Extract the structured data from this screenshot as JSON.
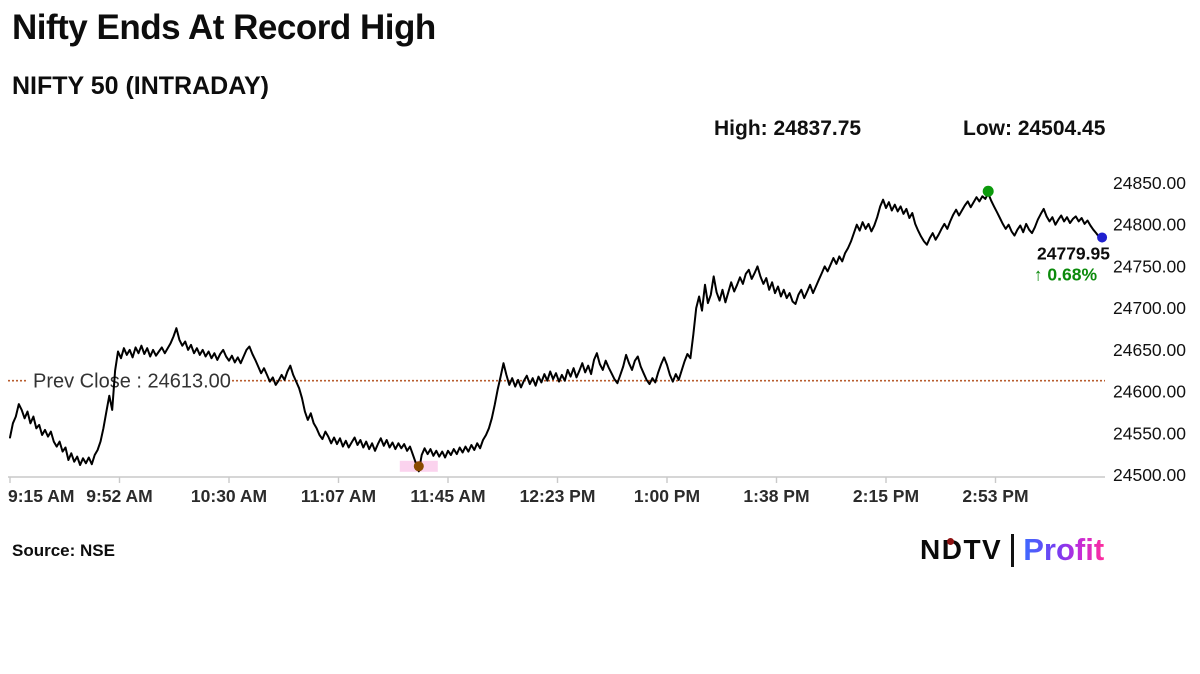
{
  "header": {
    "title": "Nifty Ends At Record High",
    "subtitle": "NIFTY 50 (INTRADAY)",
    "high_label": "High: 24837.75",
    "low_label": "Low: 24504.45"
  },
  "footer": {
    "source": "Source: NSE",
    "logo_ndtv": "NDTV",
    "logo_profit": "Profit"
  },
  "chart_data": {
    "type": "line",
    "title": "NIFTY 50 (INTRADAY)",
    "xlabel": "",
    "ylabel": "",
    "grid": false,
    "legend": "none",
    "line_color": "#000000",
    "axis_color": "#c9c9c9",
    "tick_label_color": "#2b2b2b",
    "y_axis": {
      "min": 24500,
      "max": 24850,
      "labels": [
        "24850.00",
        "24800.00",
        "24750.00",
        "24700.00",
        "24650.00",
        "24600.00",
        "24550.00",
        "24500.00"
      ],
      "values": [
        24850,
        24800,
        24750,
        24700,
        24650,
        24600,
        24550,
        24500
      ]
    },
    "x_axis": {
      "total_minutes": 375,
      "labels": [
        "9:15 AM",
        "9:52 AM",
        "10:30 AM",
        "11:07 AM",
        "11:45 AM",
        "12:23 PM",
        "1:00 PM",
        "1:38 PM",
        "2:15 PM",
        "2:53 PM"
      ],
      "minutes": [
        0,
        37.5,
        75,
        112.5,
        150,
        187.5,
        225,
        262.5,
        300,
        337.5
      ]
    },
    "prev_close": {
      "label": "Prev Close : 24613.00",
      "value": 24613,
      "color": "#b85c2e",
      "label_color": "#333333"
    },
    "high": {
      "value": 24837.75,
      "minute": 335,
      "color": "#0c9a0c"
    },
    "low": {
      "value": 24504.45,
      "minute": 140,
      "color": "#8a4a00",
      "band_color": "#fbd3ee"
    },
    "last": {
      "value": 24779.95,
      "minute": 374,
      "price_label": "24779.95",
      "change_label": "↑ 0.68%",
      "marker_color": "#2020cf",
      "price_color": "#0d0d0d",
      "change_color": "#0b8a0b"
    },
    "series": [
      [
        0,
        24545
      ],
      [
        1,
        24562
      ],
      [
        2,
        24570
      ],
      [
        3,
        24585
      ],
      [
        4,
        24578
      ],
      [
        5,
        24568
      ],
      [
        6,
        24576
      ],
      [
        7,
        24562
      ],
      [
        8,
        24570
      ],
      [
        9,
        24556
      ],
      [
        10,
        24560
      ],
      [
        11,
        24548
      ],
      [
        12,
        24554
      ],
      [
        13,
        24546
      ],
      [
        14,
        24552
      ],
      [
        15,
        24540
      ],
      [
        16,
        24534
      ],
      [
        17,
        24540
      ],
      [
        18,
        24528
      ],
      [
        19,
        24533
      ],
      [
        20,
        24518
      ],
      [
        21,
        24526
      ],
      [
        22,
        24516
      ],
      [
        23,
        24522
      ],
      [
        24,
        24512
      ],
      [
        25,
        24520
      ],
      [
        26,
        24514
      ],
      [
        27,
        24521
      ],
      [
        28,
        24513
      ],
      [
        29,
        24524
      ],
      [
        30,
        24530
      ],
      [
        31,
        24540
      ],
      [
        32,
        24556
      ],
      [
        33,
        24576
      ],
      [
        34,
        24595
      ],
      [
        35,
        24578
      ],
      [
        36,
        24625
      ],
      [
        37,
        24648
      ],
      [
        38,
        24640
      ],
      [
        39,
        24652
      ],
      [
        40,
        24644
      ],
      [
        41,
        24650
      ],
      [
        42,
        24641
      ],
      [
        43,
        24653
      ],
      [
        44,
        24646
      ],
      [
        45,
        24655
      ],
      [
        46,
        24645
      ],
      [
        47,
        24652
      ],
      [
        48,
        24642
      ],
      [
        49,
        24650
      ],
      [
        50,
        24643
      ],
      [
        51,
        24648
      ],
      [
        52,
        24653
      ],
      [
        53,
        24646
      ],
      [
        54,
        24652
      ],
      [
        55,
        24658
      ],
      [
        56,
        24666
      ],
      [
        57,
        24676
      ],
      [
        58,
        24662
      ],
      [
        59,
        24655
      ],
      [
        60,
        24660
      ],
      [
        61,
        24650
      ],
      [
        62,
        24656
      ],
      [
        63,
        24646
      ],
      [
        64,
        24652
      ],
      [
        65,
        24644
      ],
      [
        66,
        24650
      ],
      [
        67,
        24642
      ],
      [
        68,
        24648
      ],
      [
        69,
        24640
      ],
      [
        70,
        24646
      ],
      [
        71,
        24638
      ],
      [
        72,
        24645
      ],
      [
        73,
        24650
      ],
      [
        74,
        24642
      ],
      [
        75,
        24637
      ],
      [
        76,
        24643
      ],
      [
        77,
        24635
      ],
      [
        78,
        24641
      ],
      [
        79,
        24634
      ],
      [
        80,
        24642
      ],
      [
        81,
        24650
      ],
      [
        82,
        24654
      ],
      [
        83,
        24645
      ],
      [
        84,
        24638
      ],
      [
        85,
        24630
      ],
      [
        86,
        24622
      ],
      [
        87,
        24628
      ],
      [
        88,
        24620
      ],
      [
        89,
        24612
      ],
      [
        90,
        24617
      ],
      [
        91,
        24608
      ],
      [
        92,
        24613
      ],
      [
        93,
        24620
      ],
      [
        94,
        24614
      ],
      [
        95,
        24624
      ],
      [
        96,
        24631
      ],
      [
        97,
        24620
      ],
      [
        98,
        24612
      ],
      [
        99,
        24604
      ],
      [
        100,
        24592
      ],
      [
        101,
        24576
      ],
      [
        102,
        24566
      ],
      [
        103,
        24574
      ],
      [
        104,
        24562
      ],
      [
        105,
        24556
      ],
      [
        106,
        24548
      ],
      [
        107,
        24543
      ],
      [
        108,
        24552
      ],
      [
        109,
        24546
      ],
      [
        110,
        24538
      ],
      [
        111,
        24545
      ],
      [
        112,
        24537
      ],
      [
        113,
        24544
      ],
      [
        114,
        24534
      ],
      [
        115,
        24541
      ],
      [
        116,
        24533
      ],
      [
        117,
        24539
      ],
      [
        118,
        24545
      ],
      [
        119,
        24536
      ],
      [
        120,
        24542
      ],
      [
        121,
        24533
      ],
      [
        122,
        24540
      ],
      [
        123,
        24531
      ],
      [
        124,
        24538
      ],
      [
        125,
        24529
      ],
      [
        126,
        24537
      ],
      [
        127,
        24544
      ],
      [
        128,
        24535
      ],
      [
        129,
        24542
      ],
      [
        130,
        24533
      ],
      [
        131,
        24539
      ],
      [
        132,
        24531
      ],
      [
        133,
        24538
      ],
      [
        134,
        24532
      ],
      [
        135,
        24537
      ],
      [
        136,
        24529
      ],
      [
        137,
        24534
      ],
      [
        138,
        24524
      ],
      [
        139,
        24514
      ],
      [
        140,
        24504.45
      ],
      [
        141,
        24524
      ],
      [
        142,
        24532
      ],
      [
        143,
        24525
      ],
      [
        144,
        24531
      ],
      [
        145,
        24523
      ],
      [
        146,
        24529
      ],
      [
        147,
        24522
      ],
      [
        148,
        24528
      ],
      [
        149,
        24521
      ],
      [
        150,
        24529
      ],
      [
        151,
        24524
      ],
      [
        152,
        24531
      ],
      [
        153,
        24525
      ],
      [
        154,
        24533
      ],
      [
        155,
        24527
      ],
      [
        156,
        24534
      ],
      [
        157,
        24528
      ],
      [
        158,
        24536
      ],
      [
        159,
        24530
      ],
      [
        160,
        24538
      ],
      [
        161,
        24532
      ],
      [
        162,
        24542
      ],
      [
        163,
        24548
      ],
      [
        164,
        24556
      ],
      [
        165,
        24568
      ],
      [
        166,
        24584
      ],
      [
        167,
        24602
      ],
      [
        168,
        24618
      ],
      [
        169,
        24634
      ],
      [
        170,
        24620
      ],
      [
        171,
        24608
      ],
      [
        172,
        24616
      ],
      [
        173,
        24606
      ],
      [
        174,
        24614
      ],
      [
        175,
        24605
      ],
      [
        176,
        24613
      ],
      [
        177,
        24619
      ],
      [
        178,
        24609
      ],
      [
        179,
        24616
      ],
      [
        180,
        24607
      ],
      [
        181,
        24618
      ],
      [
        182,
        24611
      ],
      [
        183,
        24621
      ],
      [
        184,
        24613
      ],
      [
        185,
        24624
      ],
      [
        186,
        24615
      ],
      [
        187,
        24622
      ],
      [
        188,
        24612
      ],
      [
        189,
        24620
      ],
      [
        190,
        24613
      ],
      [
        191,
        24626
      ],
      [
        192,
        24618
      ],
      [
        193,
        24628
      ],
      [
        194,
        24617
      ],
      [
        195,
        24625
      ],
      [
        196,
        24634
      ],
      [
        197,
        24623
      ],
      [
        198,
        24631
      ],
      [
        199,
        24621
      ],
      [
        200,
        24638
      ],
      [
        201,
        24646
      ],
      [
        202,
        24633
      ],
      [
        203,
        24626
      ],
      [
        204,
        24637
      ],
      [
        205,
        24629
      ],
      [
        206,
        24622
      ],
      [
        207,
        24615
      ],
      [
        208,
        24610
      ],
      [
        209,
        24620
      ],
      [
        210,
        24630
      ],
      [
        211,
        24644
      ],
      [
        212,
        24634
      ],
      [
        213,
        24626
      ],
      [
        214,
        24637
      ],
      [
        215,
        24642
      ],
      [
        216,
        24630
      ],
      [
        217,
        24622
      ],
      [
        218,
        24614
      ],
      [
        219,
        24609
      ],
      [
        220,
        24616
      ],
      [
        221,
        24611
      ],
      [
        222,
        24623
      ],
      [
        223,
        24633
      ],
      [
        224,
        24641
      ],
      [
        225,
        24632
      ],
      [
        226,
        24620
      ],
      [
        227,
        24612
      ],
      [
        228,
        24621
      ],
      [
        229,
        24614
      ],
      [
        230,
        24625
      ],
      [
        231,
        24636
      ],
      [
        232,
        24645
      ],
      [
        233,
        24640
      ],
      [
        234,
        24668
      ],
      [
        235,
        24700
      ],
      [
        236,
        24714
      ],
      [
        237,
        24697
      ],
      [
        238,
        24728
      ],
      [
        239,
        24706
      ],
      [
        240,
        24716
      ],
      [
        241,
        24738
      ],
      [
        242,
        24719
      ],
      [
        243,
        24709
      ],
      [
        244,
        24722
      ],
      [
        245,
        24707
      ],
      [
        246,
        24719
      ],
      [
        247,
        24731
      ],
      [
        248,
        24720
      ],
      [
        249,
        24728
      ],
      [
        250,
        24737
      ],
      [
        251,
        24729
      ],
      [
        252,
        24741
      ],
      [
        253,
        24746
      ],
      [
        254,
        24735
      ],
      [
        255,
        24742
      ],
      [
        256,
        24750
      ],
      [
        257,
        24738
      ],
      [
        258,
        24729
      ],
      [
        259,
        24736
      ],
      [
        260,
        24722
      ],
      [
        261,
        24731
      ],
      [
        262,
        24718
      ],
      [
        263,
        24726
      ],
      [
        264,
        24714
      ],
      [
        265,
        24722
      ],
      [
        266,
        24712
      ],
      [
        267,
        24718
      ],
      [
        268,
        24708
      ],
      [
        269,
        24705
      ],
      [
        270,
        24716
      ],
      [
        271,
        24722
      ],
      [
        272,
        24712
      ],
      [
        273,
        24720
      ],
      [
        274,
        24728
      ],
      [
        275,
        24718
      ],
      [
        276,
        24726
      ],
      [
        277,
        24734
      ],
      [
        278,
        24742
      ],
      [
        279,
        24750
      ],
      [
        280,
        24744
      ],
      [
        281,
        24752
      ],
      [
        282,
        24760
      ],
      [
        283,
        24753
      ],
      [
        284,
        24762
      ],
      [
        285,
        24756
      ],
      [
        286,
        24766
      ],
      [
        287,
        24772
      ],
      [
        288,
        24780
      ],
      [
        289,
        24790
      ],
      [
        290,
        24800
      ],
      [
        291,
        24793
      ],
      [
        292,
        24803
      ],
      [
        293,
        24795
      ],
      [
        294,
        24801
      ],
      [
        295,
        24792
      ],
      [
        296,
        24799
      ],
      [
        297,
        24809
      ],
      [
        298,
        24822
      ],
      [
        299,
        24830
      ],
      [
        300,
        24820
      ],
      [
        301,
        24827
      ],
      [
        302,
        24817
      ],
      [
        303,
        24824
      ],
      [
        304,
        24816
      ],
      [
        305,
        24822
      ],
      [
        306,
        24813
      ],
      [
        307,
        24819
      ],
      [
        308,
        24808
      ],
      [
        309,
        24814
      ],
      [
        310,
        24801
      ],
      [
        311,
        24793
      ],
      [
        312,
        24786
      ],
      [
        313,
        24780
      ],
      [
        314,
        24776
      ],
      [
        315,
        24784
      ],
      [
        316,
        24790
      ],
      [
        317,
        24782
      ],
      [
        318,
        24788
      ],
      [
        319,
        24795
      ],
      [
        320,
        24801
      ],
      [
        321,
        24795
      ],
      [
        322,
        24804
      ],
      [
        323,
        24812
      ],
      [
        324,
        24818
      ],
      [
        325,
        24811
      ],
      [
        326,
        24817
      ],
      [
        327,
        24823
      ],
      [
        328,
        24828
      ],
      [
        329,
        24821
      ],
      [
        330,
        24827
      ],
      [
        331,
        24833
      ],
      [
        332,
        24828
      ],
      [
        333,
        24834
      ],
      [
        334,
        24831
      ],
      [
        335,
        24837.75
      ],
      [
        336,
        24829
      ],
      [
        337,
        24822
      ],
      [
        338,
        24815
      ],
      [
        339,
        24808
      ],
      [
        340,
        24801
      ],
      [
        341,
        24795
      ],
      [
        342,
        24800
      ],
      [
        343,
        24792
      ],
      [
        344,
        24787
      ],
      [
        345,
        24794
      ],
      [
        346,
        24799
      ],
      [
        347,
        24791
      ],
      [
        348,
        24801
      ],
      [
        349,
        24794
      ],
      [
        350,
        24790
      ],
      [
        351,
        24797
      ],
      [
        352,
        24806
      ],
      [
        353,
        24813
      ],
      [
        354,
        24819
      ],
      [
        355,
        24810
      ],
      [
        356,
        24804
      ],
      [
        357,
        24809
      ],
      [
        358,
        24800
      ],
      [
        359,
        24806
      ],
      [
        360,
        24811
      ],
      [
        361,
        24804
      ],
      [
        362,
        24809
      ],
      [
        363,
        24802
      ],
      [
        364,
        24807
      ],
      [
        365,
        24810
      ],
      [
        366,
        24804
      ],
      [
        367,
        24808
      ],
      [
        368,
        24801
      ],
      [
        369,
        24805
      ],
      [
        370,
        24799
      ],
      [
        371,
        24794
      ],
      [
        372,
        24790
      ],
      [
        373,
        24785
      ],
      [
        374,
        24779.95
      ]
    ]
  }
}
